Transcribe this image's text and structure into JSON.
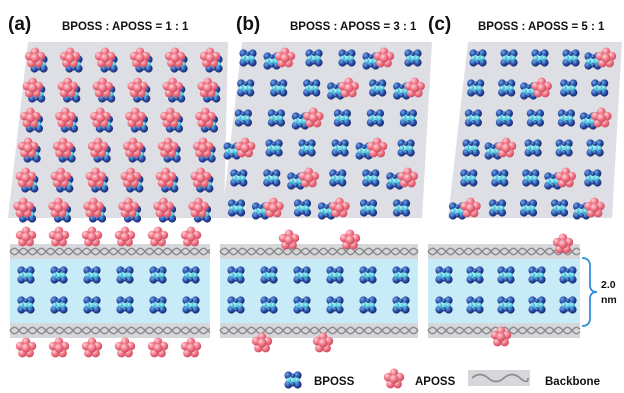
{
  "panels": [
    {
      "label": "(a)",
      "ratio": "BPOSS : APOSS = 1 : 1"
    },
    {
      "label": "(b)",
      "ratio": "BPOSS : APOSS = 3 : 1"
    },
    {
      "label": "(c)",
      "ratio": "BPOSS : APOSS = 5 : 1"
    }
  ],
  "dimension": {
    "value": "2.0",
    "unit": "nm"
  },
  "legend": {
    "bposs": "BPOSS",
    "aposs": "APOSS",
    "backbone": "Backbone"
  },
  "colors": {
    "sheet": "#dedee5",
    "channel": "#c7ebf7",
    "bposs_dark": "#1b2f7c",
    "bposs_light": "#37c3d8",
    "aposs": "#ee6e7f",
    "backbone": "#8a8a8a"
  }
}
